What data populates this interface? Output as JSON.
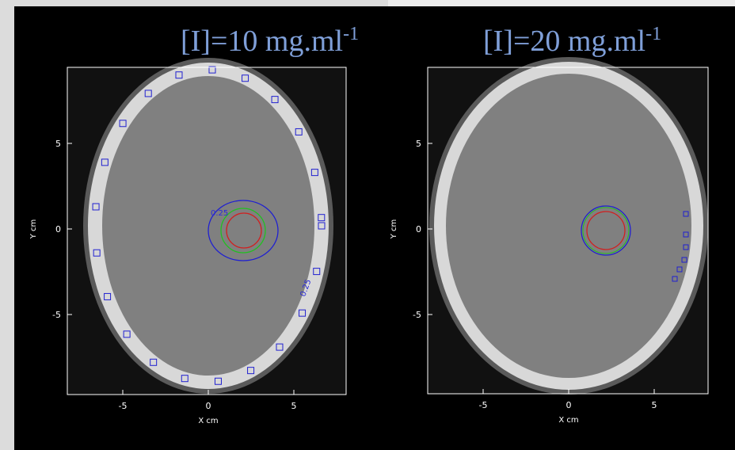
{
  "panels": [
    {
      "title": "[I]=10 mg.ml",
      "title_superscript": "-1",
      "xticks": [
        -5,
        0,
        5
      ],
      "yticks": [
        5,
        0,
        -5
      ],
      "x_label": "X cm",
      "y_label": "Y cm",
      "contour_labels": [
        "0.25",
        "0.25"
      ]
    },
    {
      "title": "[I]=20 mg.ml",
      "title_superscript": "-1",
      "xticks": [
        -5,
        0,
        5
      ],
      "yticks": [
        5,
        0,
        -5
      ],
      "x_label": "X cm",
      "y_label": "Y cm",
      "contour_labels": []
    }
  ]
}
